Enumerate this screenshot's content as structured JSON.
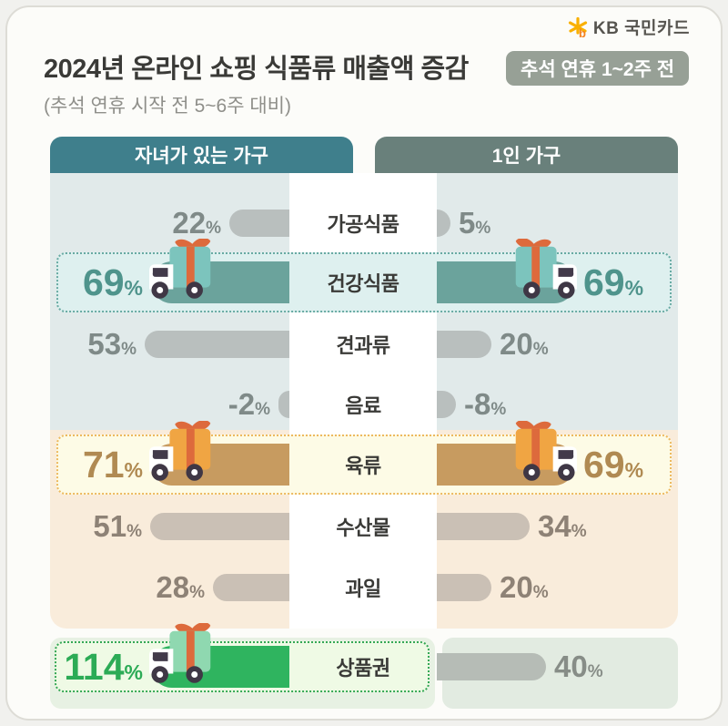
{
  "logo": {
    "brand": "KB 국민카드",
    "icon": "kb-star-icon"
  },
  "header": {
    "title": "2024년 온라인 쇼핑 식품류 매출액 증감",
    "badge": "추석 연휴 1~2주 전",
    "subtitle": "(추석 연휴 시작 전 5~6주 대비)"
  },
  "columns": {
    "left": "자녀가 있는 가구",
    "right": "1인 가구"
  },
  "chart_data": {
    "type": "bar",
    "orientation": "horizontal-diverging",
    "unit": "%",
    "categories": [
      "가공식품",
      "건강식품",
      "견과류",
      "음료",
      "육류",
      "수산물",
      "과일",
      "상품권"
    ],
    "series": [
      {
        "name": "자녀가 있는 가구",
        "values": [
          22,
          69,
          53,
          -2,
          71,
          51,
          28,
          114
        ]
      },
      {
        "name": "1인 가구",
        "values": [
          5,
          69,
          20,
          -8,
          69,
          34,
          20,
          40
        ]
      }
    ],
    "highlighted_categories": [
      "건강식품",
      "육류",
      "상품권"
    ],
    "title": "2024년 온라인 쇼핑 식품류 매출액 증감",
    "subtitle": "(추석 연휴 시작 전 5~6주 대비)",
    "period_badge": "추석 연휴 1~2주 전"
  },
  "colors": {
    "header_left_bg": "#3f7f8c",
    "header_right_bg": "#69807b",
    "badge_bg": "#97a096",
    "section_teal_bg": "#e1eaea",
    "section_peach_bg": "#f9ecdb",
    "section_green_left_bg": "#e7f1e3",
    "section_green_right_bg": "#e2ebe1",
    "bar_teal_section": "#b9bfbe",
    "bar_peach_section": "#cac0b5",
    "bar_green_section": "#b6bcb6",
    "label_teal_section": "#7f8a88",
    "label_peach_section": "#8e8276",
    "label_green_section": "#878d87"
  },
  "rows": [
    {
      "category": "가공식품",
      "type": "normal",
      "section": "teal",
      "left": {
        "num": "22",
        "unit": "%",
        "value": 22
      },
      "right": {
        "num": "5",
        "unit": "%",
        "value": 5
      }
    },
    {
      "category": "건강식품",
      "type": "highlight",
      "trucks": "both",
      "accent": "#6ba39c",
      "value_color": "#4f948c",
      "tint": "#def0ef",
      "border": "#68aaa3",
      "gift_color": "#7cc4bd",
      "left": {
        "num": "69",
        "unit": "%",
        "value": 69
      },
      "right": {
        "num": "69",
        "unit": "%",
        "value": 69
      }
    },
    {
      "category": "견과류",
      "type": "normal",
      "section": "teal",
      "left": {
        "num": "53",
        "unit": "%",
        "value": 53
      },
      "right": {
        "num": "20",
        "unit": "%",
        "value": 20
      }
    },
    {
      "category": "음료",
      "type": "normal",
      "section": "teal",
      "left": {
        "num": "-2",
        "unit": "%",
        "value": -2
      },
      "right": {
        "num": "-8",
        "unit": "%",
        "value": -8
      }
    },
    {
      "category": "육류",
      "type": "highlight",
      "trucks": "both",
      "accent": "#c79b60",
      "value_color": "#b08a52",
      "tint": "#fdfbe6",
      "border": "#edb95f",
      "gift_color": "#f0a543",
      "left": {
        "num": "71",
        "unit": "%",
        "value": 71
      },
      "right": {
        "num": "69",
        "unit": "%",
        "value": 69
      }
    },
    {
      "category": "수산물",
      "type": "normal",
      "section": "peach",
      "left": {
        "num": "51",
        "unit": "%",
        "value": 51
      },
      "right": {
        "num": "34",
        "unit": "%",
        "value": 34
      }
    },
    {
      "category": "과일",
      "type": "normal",
      "section": "peach",
      "left": {
        "num": "28",
        "unit": "%",
        "value": 28
      },
      "right": {
        "num": "20",
        "unit": "%",
        "value": 20
      }
    },
    {
      "category": "상품권",
      "type": "highlight",
      "trucks": "left",
      "accent": "#2fb45f",
      "value_color": "#2cab56",
      "tint": "#effae5",
      "border": "#35a855",
      "gift_color": "#8fd8b0",
      "left": {
        "num": "114",
        "unit": "%",
        "value": 114
      },
      "right": {
        "num": "40",
        "unit": "%",
        "value": 40,
        "section": "green"
      }
    }
  ]
}
